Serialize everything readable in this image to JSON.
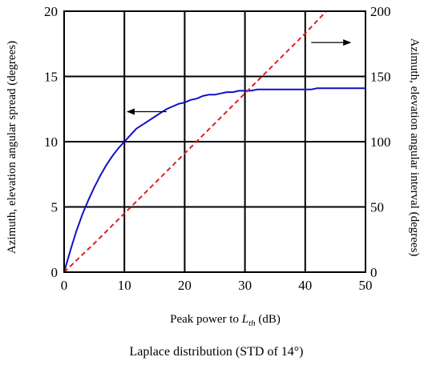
{
  "chart_data": {
    "type": "line",
    "title": "",
    "caption": "Laplace distribution (STD of 14°)",
    "xlabel": {
      "prefix": "Peak power to ",
      "var": "L",
      "sub": "th",
      "suffix": " (dB)"
    },
    "ylabel_left": "Azimuth, elevation angular spread (degrees)",
    "ylabel_right": "Azimuth, elevation angular interval (degrees)",
    "xlim": [
      0,
      50
    ],
    "ylim_left": [
      0,
      20
    ],
    "ylim_right": [
      0,
      200
    ],
    "x_ticks": [
      0,
      10,
      20,
      30,
      40,
      50
    ],
    "y_left_ticks": [
      0,
      5,
      10,
      15,
      20
    ],
    "y_right_ticks": [
      0,
      50,
      100,
      150,
      200
    ],
    "grid": true,
    "series": [
      {
        "axis": "left",
        "color": "#1010c8",
        "style": "solid",
        "x": [
          0,
          1,
          2,
          3,
          4,
          5,
          6,
          7,
          8,
          9,
          10,
          11,
          12,
          13,
          14,
          15,
          16,
          17,
          18,
          19,
          20,
          21,
          22,
          23,
          24,
          25,
          26,
          27,
          28,
          29,
          30,
          31,
          32,
          33,
          34,
          35,
          36,
          37,
          38,
          39,
          40,
          41,
          42,
          43,
          44,
          45,
          46,
          47,
          48,
          49,
          50
        ],
        "y": [
          0,
          1.6,
          3.1,
          4.4,
          5.5,
          6.5,
          7.4,
          8.2,
          8.9,
          9.5,
          10.0,
          10.5,
          11.0,
          11.3,
          11.6,
          11.9,
          12.2,
          12.5,
          12.7,
          12.9,
          13.0,
          13.2,
          13.3,
          13.5,
          13.6,
          13.6,
          13.7,
          13.8,
          13.8,
          13.9,
          13.9,
          13.9,
          14.0,
          14.0,
          14.0,
          14.0,
          14.0,
          14.0,
          14.0,
          14.0,
          14.0,
          14.0,
          14.1,
          14.1,
          14.1,
          14.1,
          14.1,
          14.1,
          14.1,
          14.1,
          14.1
        ]
      },
      {
        "axis": "right",
        "color": "#e02020",
        "style": "dashed",
        "x": [
          0,
          5,
          10,
          15,
          20,
          25,
          30,
          35,
          40,
          43.5
        ],
        "y": [
          0,
          22,
          45,
          68,
          91,
          114,
          137,
          160,
          183,
          200
        ]
      }
    ],
    "annotations": [
      {
        "type": "arrow",
        "direction": "left",
        "from": [
          17,
          12.3
        ],
        "to": [
          10.5,
          12.3
        ]
      },
      {
        "type": "arrow",
        "direction": "right",
        "from": [
          41,
          17.6
        ],
        "to": [
          47.5,
          17.6
        ]
      }
    ]
  }
}
